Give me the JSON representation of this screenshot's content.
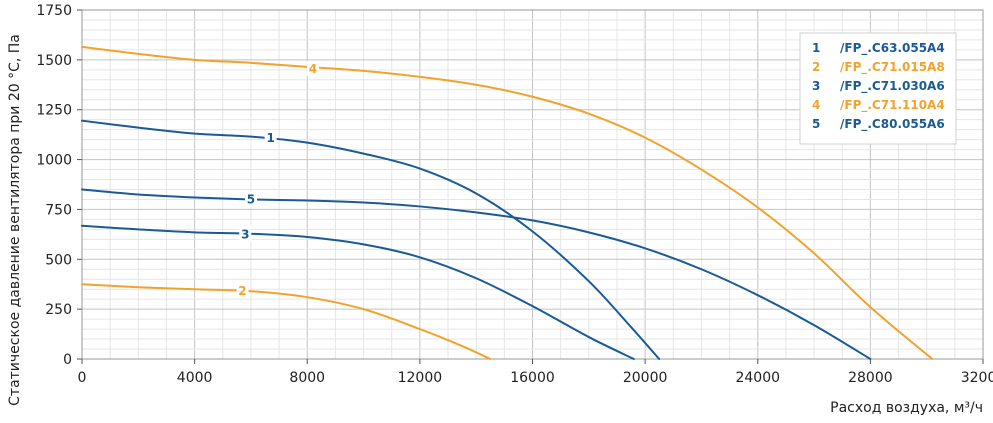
{
  "chart_data": {
    "type": "line",
    "title": "",
    "xlabel": "Расход воздуха, м³/ч",
    "ylabel": "Статическое давление вентилятора при 20 °C, Па",
    "xlim": [
      0,
      32000
    ],
    "ylim": [
      0,
      1750
    ],
    "x_ticks": [
      "0",
      "4000",
      "8000",
      "12000",
      "16000",
      "20000",
      "24000",
      "28000",
      "32000"
    ],
    "y_ticks": [
      "0",
      "250",
      "500",
      "750",
      "1000",
      "1250",
      "1500",
      "1750"
    ],
    "grid": true,
    "legend_position": "top-right",
    "colors": {
      "blue": "#1a5a96",
      "orange": "#f2a22d"
    },
    "series": [
      {
        "id": "1",
        "name": "/FP_.C63.055A4",
        "color": "#1a5a96",
        "x": [
          0,
          2000,
          4000,
          6000,
          8000,
          10000,
          12000,
          14000,
          16000,
          18000,
          19500,
          20500
        ],
        "y": [
          1195,
          1160,
          1130,
          1115,
          1085,
          1030,
          955,
          830,
          640,
          390,
          160,
          0
        ]
      },
      {
        "id": "2",
        "name": "/FP_.C71.015A8",
        "color": "#f2a22d",
        "x": [
          0,
          2000,
          4000,
          6000,
          8000,
          10000,
          12000,
          13500,
          14500
        ],
        "y": [
          375,
          360,
          350,
          340,
          310,
          250,
          150,
          65,
          0
        ]
      },
      {
        "id": "3",
        "name": "/FP_.C71.030A6",
        "color": "#1a5a96",
        "x": [
          0,
          2000,
          4000,
          6000,
          8000,
          10000,
          12000,
          14000,
          16000,
          18000,
          19600
        ],
        "y": [
          668,
          650,
          635,
          628,
          612,
          575,
          510,
          405,
          265,
          110,
          0
        ]
      },
      {
        "id": "4",
        "name": "/FP_.C71.110A4",
        "color": "#f2a22d",
        "x": [
          0,
          2000,
          4000,
          6000,
          8000,
          10000,
          12000,
          14000,
          16000,
          18000,
          20000,
          22000,
          24000,
          26000,
          28000,
          30200
        ],
        "y": [
          1565,
          1530,
          1500,
          1485,
          1465,
          1445,
          1415,
          1375,
          1315,
          1230,
          1110,
          950,
          760,
          530,
          260,
          0
        ]
      },
      {
        "id": "5",
        "name": "/FP_.C80.055A6",
        "color": "#1a5a96",
        "x": [
          0,
          2000,
          4000,
          6000,
          8000,
          10000,
          12000,
          14000,
          16000,
          18000,
          20000,
          22000,
          24000,
          26000,
          28000
        ],
        "y": [
          850,
          825,
          810,
          800,
          795,
          785,
          765,
          735,
          695,
          635,
          555,
          450,
          320,
          170,
          0
        ]
      }
    ],
    "curve_labels": [
      {
        "text": "1",
        "x": 6700,
        "y": 1108,
        "color": "#1a5a96"
      },
      {
        "text": "2",
        "x": 5700,
        "y": 340,
        "color": "#f2a22d"
      },
      {
        "text": "3",
        "x": 5800,
        "y": 625,
        "color": "#1a5a96"
      },
      {
        "text": "4",
        "x": 8200,
        "y": 1455,
        "color": "#f2a22d"
      },
      {
        "text": "5",
        "x": 6000,
        "y": 800,
        "color": "#1a5a96"
      }
    ]
  }
}
